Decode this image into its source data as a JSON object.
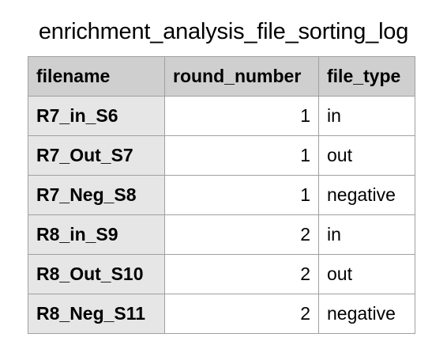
{
  "title": "enrichment_analysis_file_sorting_log",
  "columns": [
    "filename",
    "round_number",
    "file_type"
  ],
  "rows": [
    {
      "filename": "R7_in_S6",
      "round_number": "1",
      "file_type": "in"
    },
    {
      "filename": "R7_Out_S7",
      "round_number": "1",
      "file_type": "out"
    },
    {
      "filename": "R7_Neg_S8",
      "round_number": "1",
      "file_type": "negative"
    },
    {
      "filename": "R8_in_S9",
      "round_number": "2",
      "file_type": "in"
    },
    {
      "filename": "R8_Out_S10",
      "round_number": "2",
      "file_type": "out"
    },
    {
      "filename": "R8_Neg_S11",
      "round_number": "2",
      "file_type": "negative"
    }
  ],
  "colors": {
    "header_bg": "#cfcfcf",
    "filename_bg": "#e6e6e6",
    "border": "#a0a0a0"
  }
}
